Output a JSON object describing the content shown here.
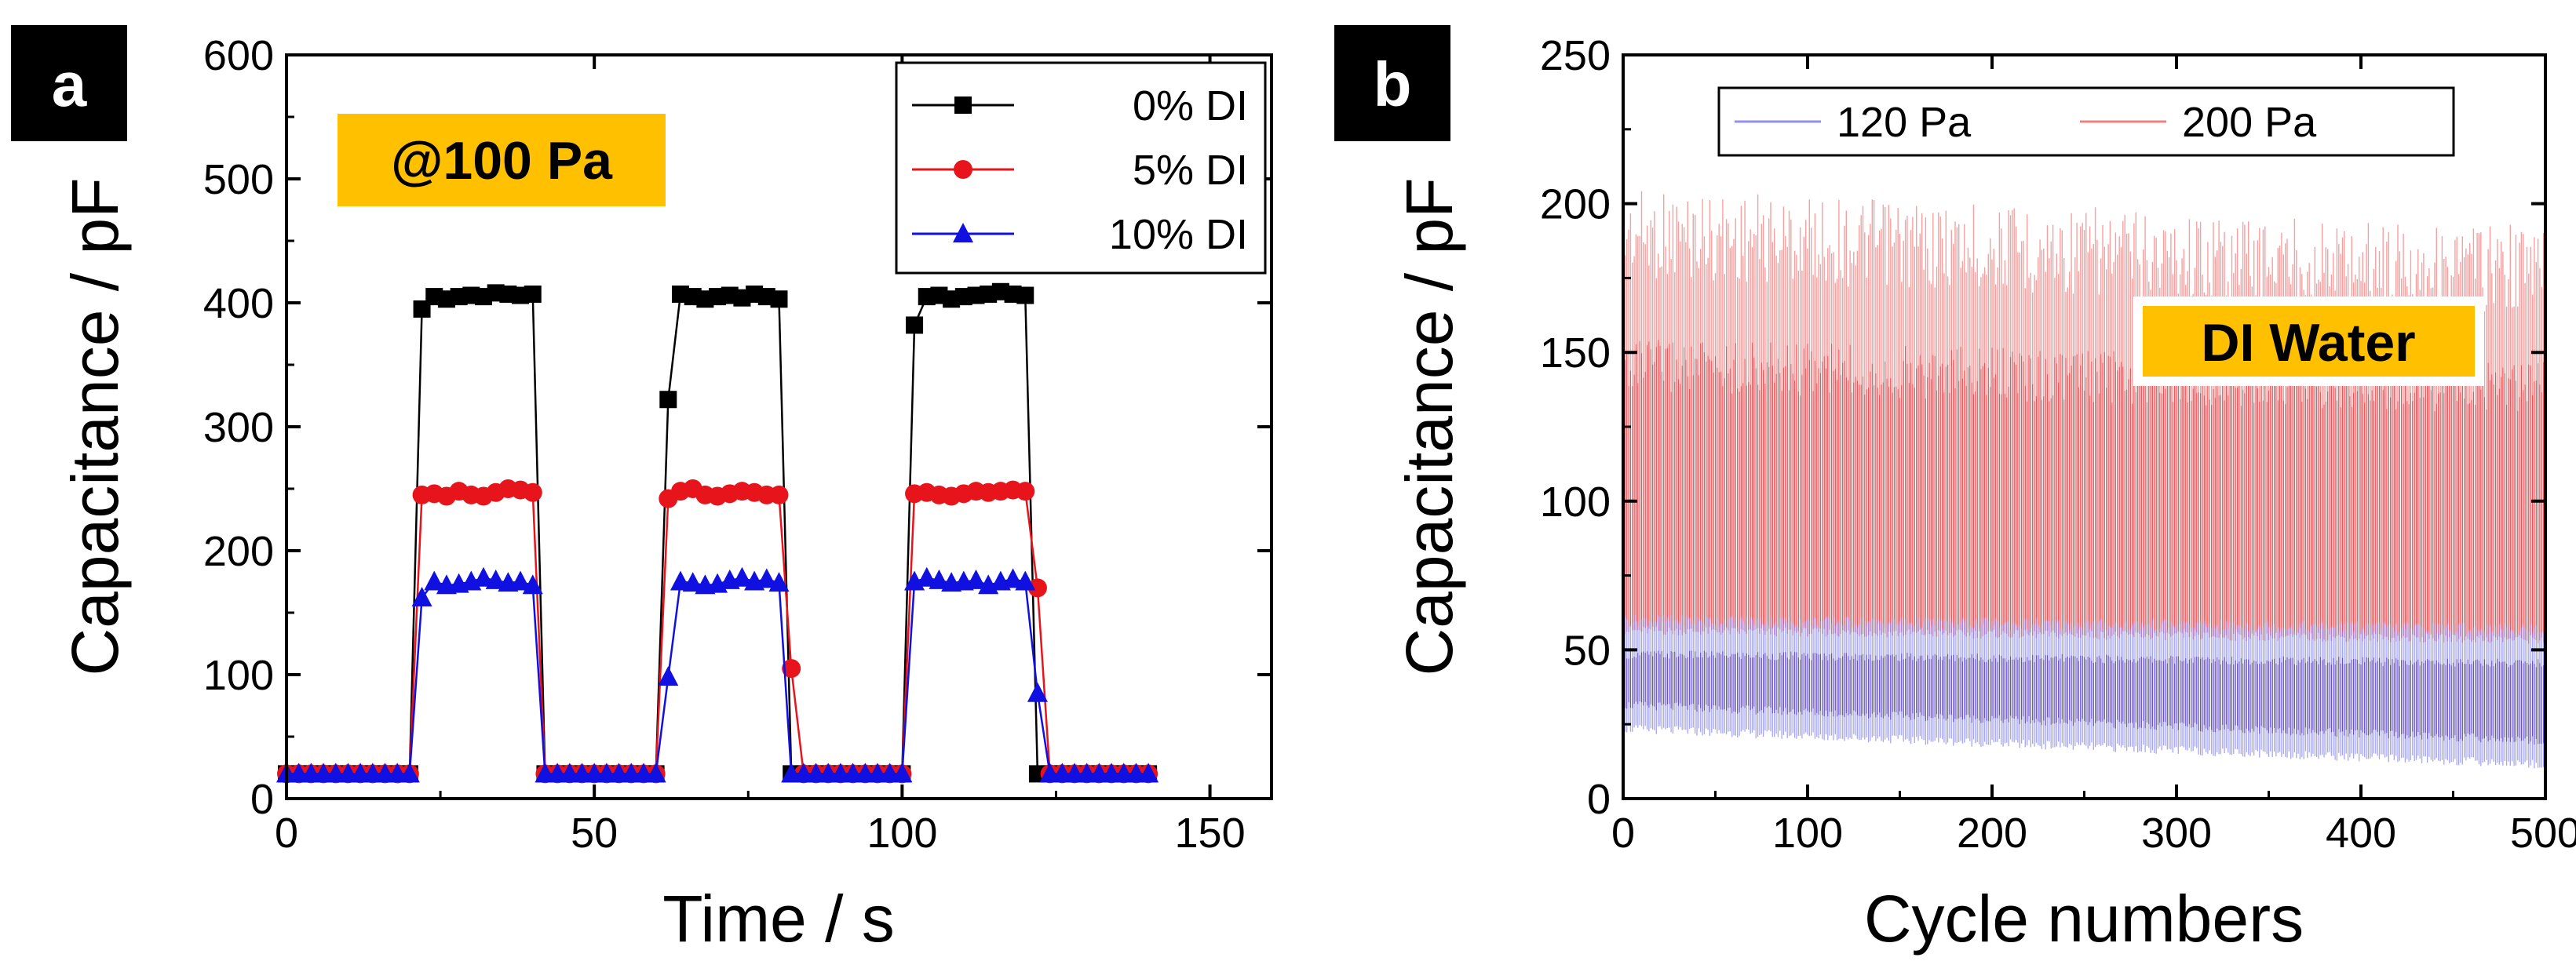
{
  "colors": {
    "black": "#000000",
    "red": "#e8141c",
    "blue": "#1010e0",
    "badge": "#ffc000",
    "red_light": "#f08080",
    "blue_light": "#7070ff"
  },
  "chart_data": [
    {
      "type": "line",
      "panel_label": "a",
      "title": "",
      "annotation": "@100 Pa",
      "xlabel": "Time / s",
      "ylabel": "Capacitance / pF",
      "xlim": [
        0,
        160
      ],
      "ylim": [
        0,
        600
      ],
      "xticks": [
        0,
        50,
        100,
        150
      ],
      "yticks": [
        0,
        100,
        200,
        300,
        400,
        500,
        600
      ],
      "legend_position": "top-right",
      "series": [
        {
          "name": "0% DI",
          "color": "#000000",
          "marker": "square",
          "x": [
            0,
            2,
            4,
            6,
            8,
            10,
            12,
            14,
            16,
            18,
            20,
            22,
            24,
            26,
            28,
            30,
            32,
            34,
            36,
            38,
            40,
            42,
            44,
            46,
            48,
            50,
            52,
            54,
            56,
            58,
            60,
            62,
            64,
            66,
            68,
            70,
            72,
            74,
            76,
            78,
            80,
            82,
            84,
            86,
            88,
            90,
            92,
            94,
            96,
            98,
            100,
            102,
            104,
            106,
            108,
            110,
            112,
            114,
            116,
            118,
            120,
            122,
            124,
            126,
            128,
            130,
            132,
            134,
            136,
            138,
            140
          ],
          "y": [
            20,
            20,
            20,
            20,
            20,
            20,
            20,
            20,
            20,
            20,
            20,
            395,
            405,
            403,
            405,
            406,
            405,
            408,
            407,
            406,
            407,
            20,
            20,
            20,
            20,
            20,
            20,
            20,
            20,
            20,
            20,
            322,
            407,
            405,
            403,
            405,
            406,
            404,
            407,
            405,
            403,
            20,
            20,
            20,
            20,
            20,
            20,
            20,
            20,
            20,
            20,
            382,
            405,
            406,
            403,
            405,
            406,
            407,
            409,
            407,
            406,
            20,
            20,
            20,
            20,
            20,
            20,
            20,
            20,
            20,
            20
          ]
        },
        {
          "name": "5% DI",
          "color": "#e8141c",
          "marker": "circle",
          "x": [
            0,
            2,
            4,
            6,
            8,
            10,
            12,
            14,
            16,
            18,
            20,
            22,
            24,
            26,
            28,
            30,
            32,
            34,
            36,
            38,
            40,
            42,
            44,
            46,
            48,
            50,
            52,
            54,
            56,
            58,
            60,
            62,
            64,
            66,
            68,
            70,
            72,
            74,
            76,
            78,
            80,
            82,
            84,
            86,
            88,
            90,
            92,
            94,
            96,
            98,
            100,
            102,
            104,
            106,
            108,
            110,
            112,
            114,
            116,
            118,
            120,
            122,
            124,
            126,
            128,
            130,
            132,
            134,
            136,
            138,
            140
          ],
          "y": [
            20,
            20,
            20,
            20,
            20,
            20,
            20,
            20,
            20,
            20,
            20,
            245,
            246,
            244,
            248,
            245,
            244,
            247,
            250,
            249,
            247,
            20,
            20,
            20,
            20,
            20,
            20,
            20,
            20,
            20,
            20,
            242,
            248,
            250,
            245,
            244,
            246,
            248,
            247,
            245,
            245,
            105,
            20,
            20,
            20,
            20,
            20,
            20,
            20,
            20,
            20,
            246,
            247,
            245,
            244,
            246,
            248,
            247,
            248,
            249,
            248,
            170,
            20,
            20,
            20,
            20,
            20,
            20,
            20,
            20,
            20
          ]
        },
        {
          "name": "10% DI",
          "color": "#1010e0",
          "marker": "triangle",
          "x": [
            0,
            2,
            4,
            6,
            8,
            10,
            12,
            14,
            16,
            18,
            20,
            22,
            24,
            26,
            28,
            30,
            32,
            34,
            36,
            38,
            40,
            42,
            44,
            46,
            48,
            50,
            52,
            54,
            56,
            58,
            60,
            62,
            64,
            66,
            68,
            70,
            72,
            74,
            76,
            78,
            80,
            82,
            84,
            86,
            88,
            90,
            92,
            94,
            96,
            98,
            100,
            102,
            104,
            106,
            108,
            110,
            112,
            114,
            116,
            118,
            120,
            122,
            124,
            126,
            128,
            130,
            132,
            134,
            136,
            138,
            140
          ],
          "y": [
            20,
            20,
            20,
            20,
            20,
            20,
            20,
            20,
            20,
            20,
            20,
            162,
            175,
            172,
            173,
            175,
            178,
            176,
            174,
            175,
            172,
            20,
            20,
            20,
            20,
            20,
            20,
            20,
            20,
            20,
            20,
            98,
            175,
            174,
            172,
            173,
            176,
            178,
            175,
            177,
            174,
            20,
            20,
            20,
            20,
            20,
            20,
            20,
            20,
            20,
            20,
            175,
            178,
            176,
            174,
            175,
            176,
            172,
            175,
            177,
            175,
            85,
            20,
            20,
            20,
            20,
            20,
            20,
            20,
            20,
            20
          ]
        }
      ]
    },
    {
      "type": "line",
      "panel_label": "b",
      "title": "",
      "annotation": "DI Water",
      "xlabel": "Cycle numbers",
      "ylabel": "Capacitance / pF",
      "xlim": [
        0,
        500
      ],
      "ylim": [
        0,
        250
      ],
      "xticks": [
        0,
        100,
        200,
        300,
        400,
        500
      ],
      "yticks": [
        0,
        50,
        100,
        150,
        200,
        250
      ],
      "legend_position": "top",
      "series": [
        {
          "name": "120 Pa",
          "color": "#1010e0",
          "baseline_start": 22,
          "baseline_end": 10,
          "peak_start": 58,
          "peak_end": 55,
          "core_top_start": 47,
          "core_top_end": 44
        },
        {
          "name": "200 Pa",
          "color": "#e8141c",
          "baseline_start": 55,
          "baseline_end": 52,
          "peak_start": 205,
          "peak_end": 193,
          "core_top_start": 155,
          "core_top_end": 147
        }
      ]
    }
  ]
}
